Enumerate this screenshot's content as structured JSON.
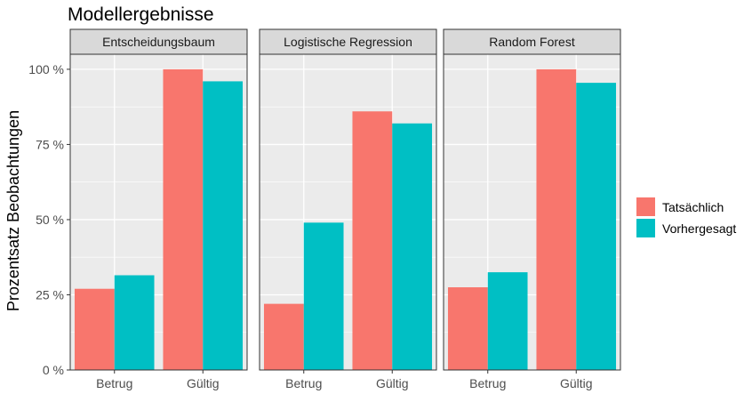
{
  "chart_data": {
    "type": "bar",
    "title": "Modellergebnisse",
    "ylabel": "Prozentsatz Beobachtungen",
    "xlabel": "",
    "ylim": [
      0,
      105
    ],
    "y_ticks": [
      0,
      25,
      50,
      75,
      100
    ],
    "y_tick_labels": [
      "0 %",
      "25 %",
      "50 %",
      "75 %",
      "100 %"
    ],
    "grid": true,
    "legend_position": "right",
    "categories": [
      "Betrug",
      "Gültig"
    ],
    "series_legend": [
      {
        "name": "Tatsächlich",
        "color": "#F8766D"
      },
      {
        "name": "Vorhergesagt",
        "color": "#00BFC4"
      }
    ],
    "facets": [
      {
        "label": "Entscheidungsbaum",
        "series": [
          {
            "name": "Tatsächlich",
            "values": [
              27,
              100
            ]
          },
          {
            "name": "Vorhergesagt",
            "values": [
              31.5,
              96
            ]
          }
        ]
      },
      {
        "label": "Logistische Regression",
        "series": [
          {
            "name": "Tatsächlich",
            "values": [
              22,
              86
            ]
          },
          {
            "name": "Vorhergesagt",
            "values": [
              49,
              82
            ]
          }
        ]
      },
      {
        "label": "Random Forest",
        "series": [
          {
            "name": "Tatsächlich",
            "values": [
              27.5,
              100
            ]
          },
          {
            "name": "Vorhergesagt",
            "values": [
              32.5,
              95.5
            ]
          }
        ]
      }
    ]
  }
}
